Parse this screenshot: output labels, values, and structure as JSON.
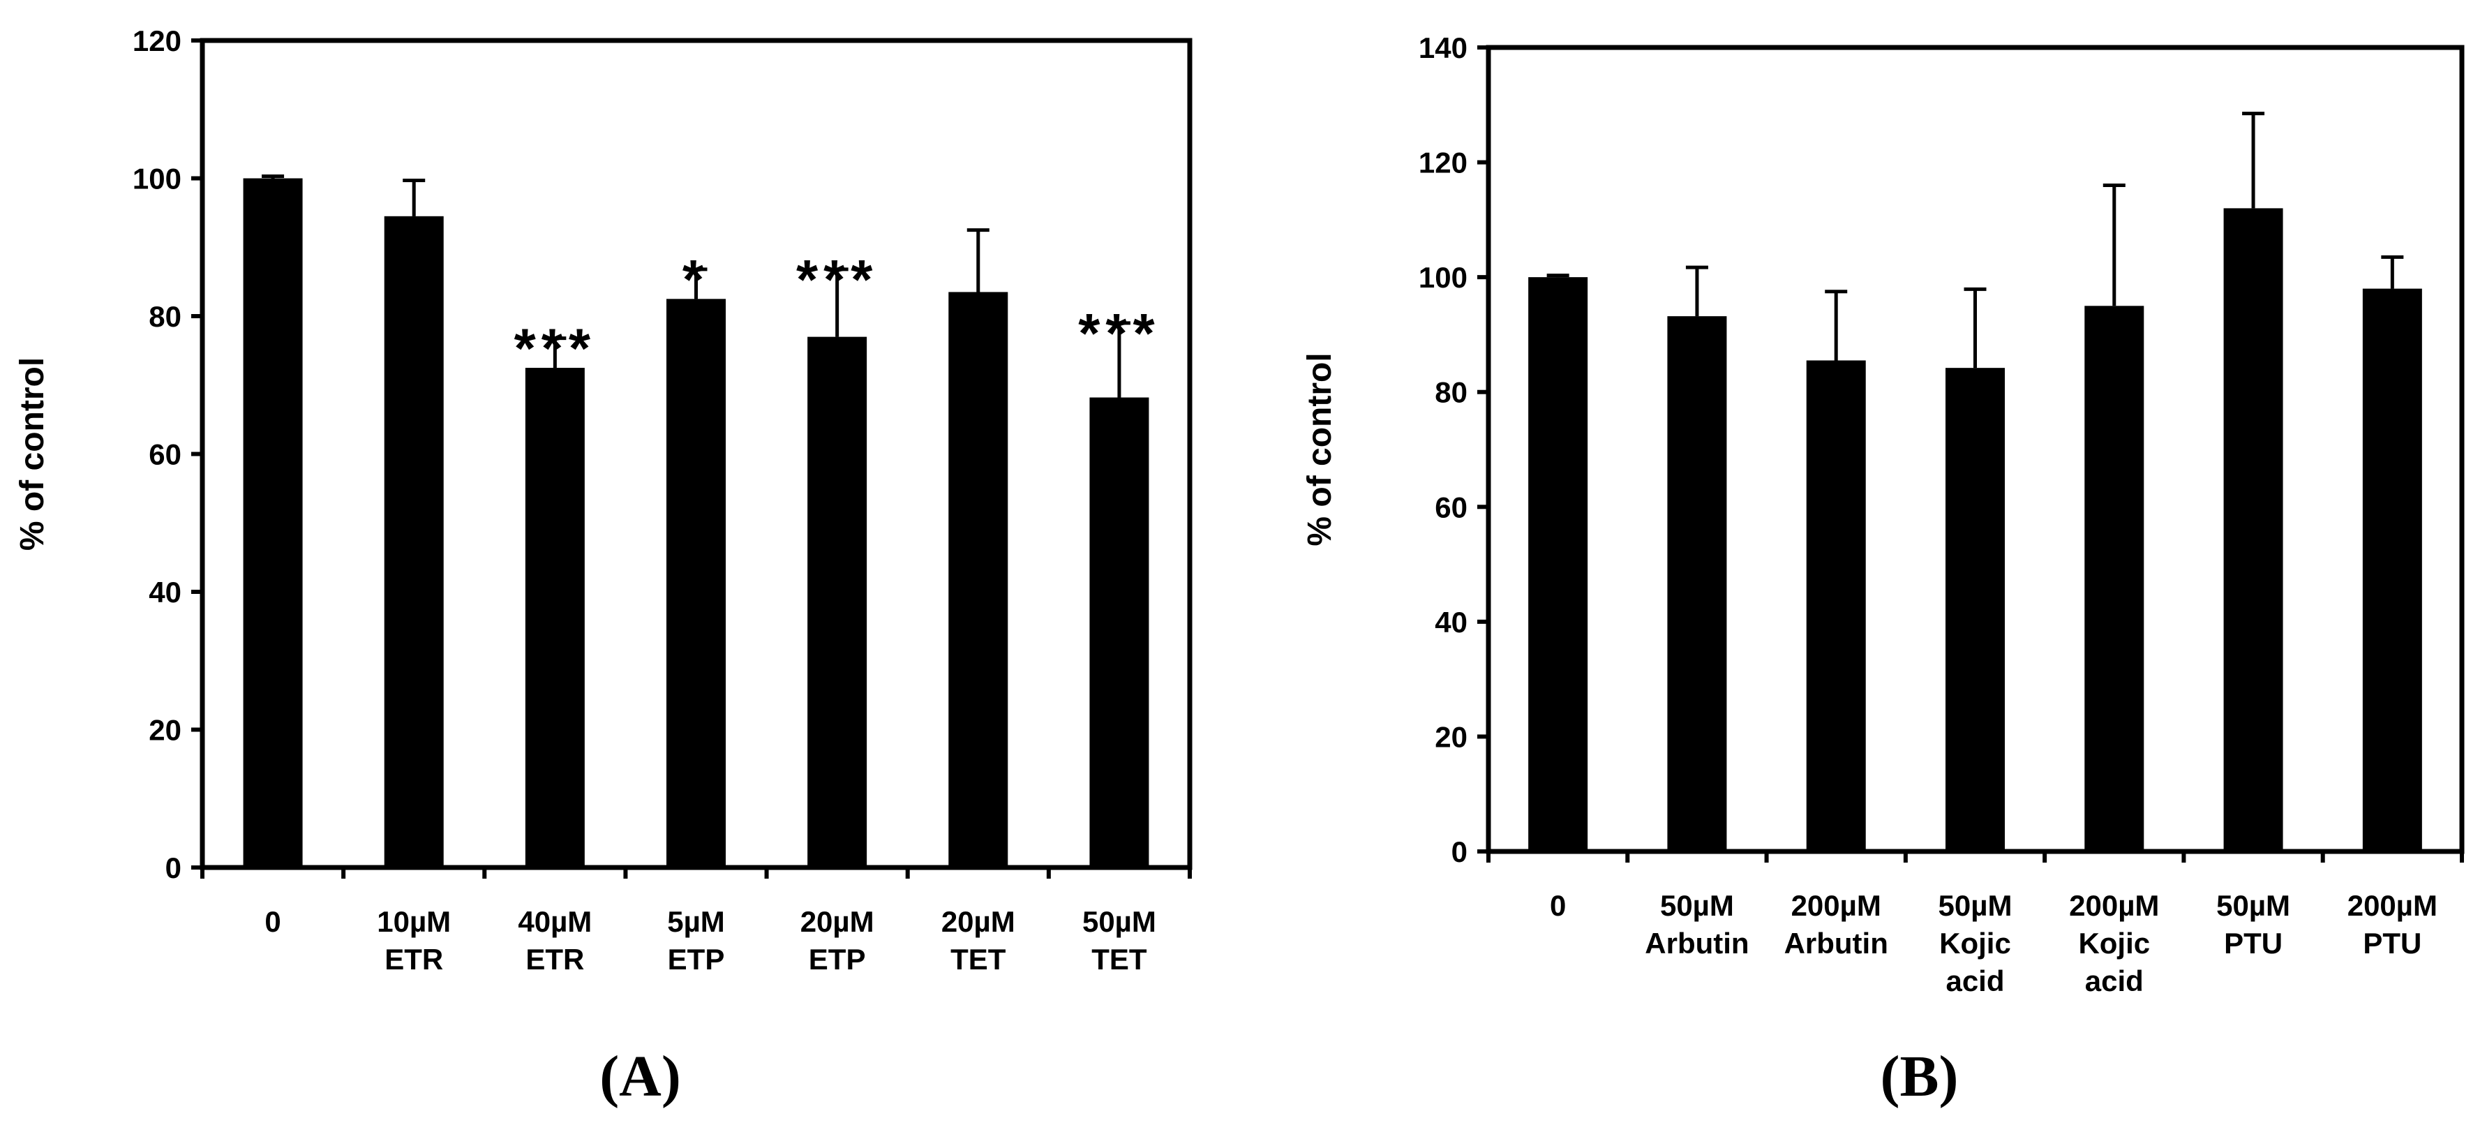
{
  "chart_data": [
    {
      "type": "bar",
      "panel_label": "(A)",
      "ylabel": "% of control",
      "ylim": [
        0,
        120
      ],
      "yticks": [
        0,
        20,
        40,
        60,
        80,
        100,
        120
      ],
      "categories": [
        [
          "0"
        ],
        [
          "10µM",
          "ETR"
        ],
        [
          "40µM",
          "ETR"
        ],
        [
          "5µM",
          "ETP"
        ],
        [
          "20µM",
          "ETP"
        ],
        [
          "20µM",
          "TET"
        ],
        [
          "50µM",
          "TET"
        ]
      ],
      "values": [
        100,
        94.5,
        72.5,
        82.5,
        77,
        83.5,
        68.2
      ],
      "errors": [
        0.3,
        5.2,
        4.3,
        4.3,
        9.8,
        9,
        10.8
      ],
      "significance": [
        "",
        "",
        "***",
        "*",
        "***",
        "",
        "***"
      ]
    },
    {
      "type": "bar",
      "panel_label": "(B)",
      "ylabel": "% of control",
      "ylim": [
        0,
        140
      ],
      "yticks": [
        0,
        20,
        40,
        60,
        80,
        100,
        120,
        140
      ],
      "categories": [
        [
          "0"
        ],
        [
          "50µM",
          "Arbutin"
        ],
        [
          "200µM",
          "Arbutin"
        ],
        [
          "50µM",
          "Kojic",
          "acid"
        ],
        [
          "200µM",
          "Kojic",
          "acid"
        ],
        [
          "50µM",
          "PTU"
        ],
        [
          "200µM",
          "PTU"
        ]
      ],
      "values": [
        100,
        93.2,
        85.5,
        84.2,
        95,
        112,
        98
      ],
      "errors": [
        0.3,
        8.5,
        12,
        13.7,
        21,
        16.5,
        5.5
      ],
      "significance": [
        "",
        "",
        "",
        "",
        "",
        "",
        ""
      ]
    }
  ]
}
